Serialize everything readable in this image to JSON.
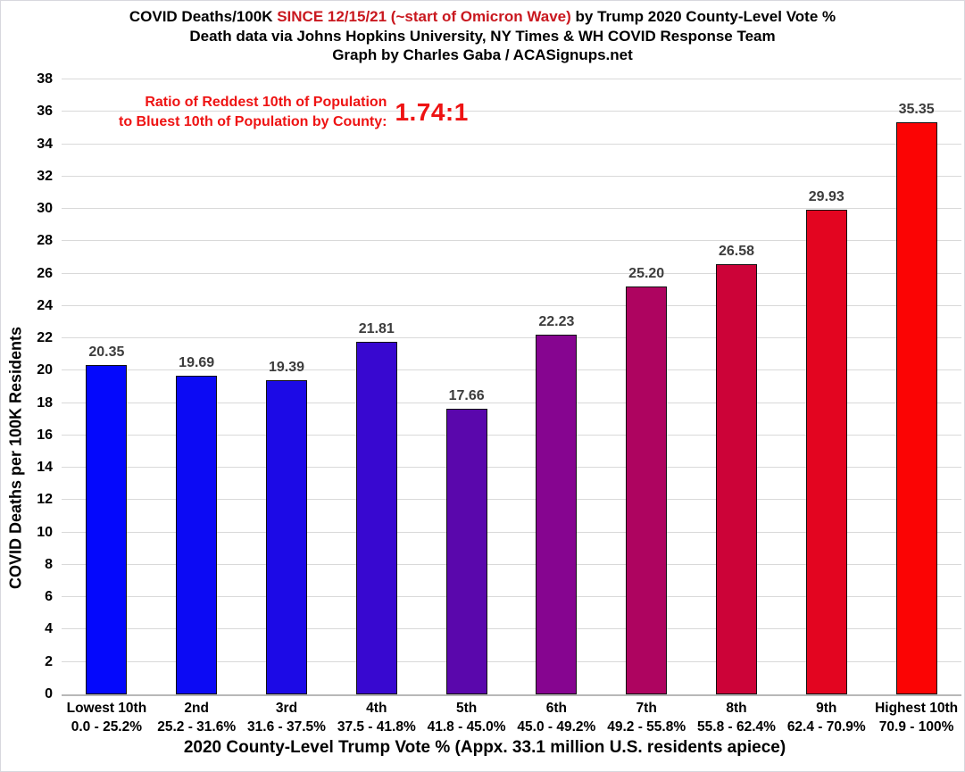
{
  "title": {
    "line1_prefix": "COVID Deaths/100K ",
    "line1_red": "SINCE 12/15/21 (~start of Omicron Wave)",
    "line1_suffix": " by Trump 2020 County-Level Vote %",
    "line2": "Death data via Johns Hopkins University, NY Times & WH COVID Response Team",
    "line3": "Graph by Charles Gaba / ACASignups.net",
    "highlight_color": "#c9181f"
  },
  "annotation": {
    "line1": "Ratio of Reddest 10th of Population",
    "line2": "to Bluest 10th of Population by County:",
    "ratio": "1.74:1",
    "color": "#ee1313"
  },
  "chart_data": {
    "type": "bar",
    "title": "COVID Deaths/100K SINCE 12/15/21 (~start of Omicron Wave) by Trump 2020 County-Level Vote %",
    "subtitle": "Death data via Johns Hopkins University, NY Times & WH COVID Response Team",
    "credit": "Graph by Charles Gaba / ACASignups.net",
    "xlabel": "2020 County-Level Trump Vote % (Appx. 33.1 million U.S. residents apiece)",
    "ylabel": "COVID Deaths per 100K Residents",
    "ylim": [
      0,
      38
    ],
    "ytick_step": 2,
    "grid": true,
    "legend": "none",
    "categories": [
      "Lowest 10th",
      "2nd",
      "3rd",
      "4th",
      "5th",
      "6th",
      "7th",
      "8th",
      "9th",
      "Highest 10th"
    ],
    "category_ranges": [
      "0.0 - 25.2%",
      "25.2 - 31.6%",
      "31.6 - 37.5%",
      "37.5 - 41.8%",
      "41.8 - 45.0%",
      "45.0 - 49.2%",
      "49.2 - 55.8%",
      "55.8 - 62.4%",
      "62.4 - 70.9%",
      "70.9 - 100%"
    ],
    "values": [
      20.35,
      19.69,
      19.39,
      21.81,
      17.66,
      22.23,
      25.2,
      26.58,
      29.93,
      35.35
    ],
    "value_labels": [
      "20.35",
      "19.69",
      "19.39",
      "21.81",
      "17.66",
      "22.23",
      "25.20",
      "26.58",
      "29.93",
      "35.35"
    ],
    "bar_colors": [
      "#0408fc",
      "#0c0af4",
      "#1c0ae6",
      "#3808d0",
      "#5a07ac",
      "#860590",
      "#ae0460",
      "#cc0338",
      "#e30520",
      "#fb0404"
    ],
    "value_label_color": "#3c3c3c",
    "gridline_color": "#d9d9d9",
    "axis_line_color": "#b8b8b8",
    "bar_border_color": "#111111"
  }
}
